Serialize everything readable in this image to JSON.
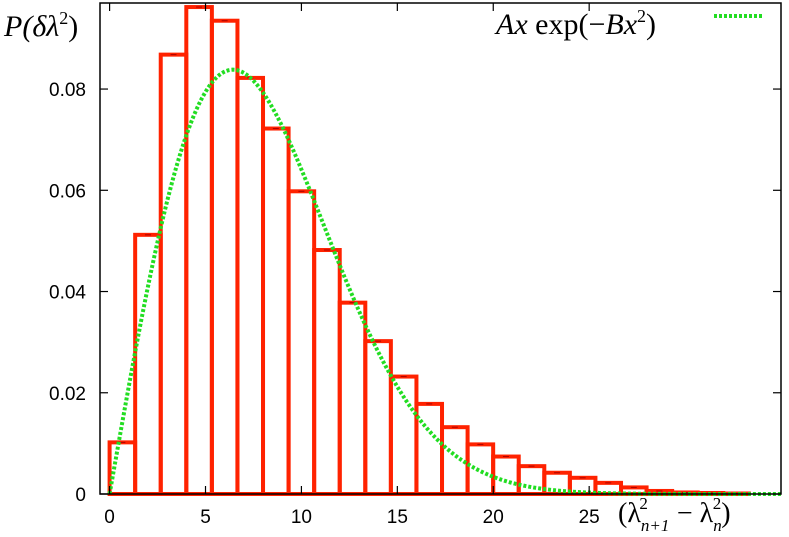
{
  "chart_data": {
    "type": "bar",
    "title": "",
    "ylabel_parts": {
      "main": "P(δλ",
      "sup": "2",
      "close": ")"
    },
    "xlabel_parts": {
      "open": "(λ",
      "sub1": "n+1",
      "sup1": "2",
      "minus": " − λ",
      "sub2": "n",
      "sup2": "2",
      "close": ")"
    },
    "xlim": [
      -0.5,
      35
    ],
    "ylim": [
      0,
      0.097
    ],
    "xticks": [
      0,
      5,
      10,
      15,
      20,
      25
    ],
    "xtick_labels": [
      "0",
      "5",
      "10",
      "15",
      "20",
      "25"
    ],
    "yticks": [
      0,
      0.02,
      0.04,
      0.06,
      0.08
    ],
    "ytick_labels": [
      "0",
      "0.02",
      "0.04",
      "0.06",
      "0.08"
    ],
    "grid": false,
    "legend_position": "top-right",
    "series": [
      {
        "name": "",
        "kind": "histogram",
        "color": "#ff2200",
        "bin_width": 1.333,
        "bin_start": 0,
        "values": [
          0.0102,
          0.0512,
          0.0868,
          0.0962,
          0.0935,
          0.0822,
          0.0722,
          0.0598,
          0.0482,
          0.0378,
          0.0302,
          0.0232,
          0.0178,
          0.0132,
          0.0098,
          0.0074,
          0.0055,
          0.0042,
          0.0032,
          0.0022,
          0.0013,
          0.0006,
          0.0003,
          0.0002,
          0.0001
        ]
      },
      {
        "name": "Ax exp(−Bx²)",
        "legend_parts": {
          "a": "Ax ",
          "exp": "exp(−",
          "b": "Bx",
          "sup": "2",
          "close": ")"
        },
        "kind": "line",
        "style": "dotted",
        "color": "#22dd22",
        "function": "A*x*exp(-B*x^2)",
        "params": {
          "A": 0.0215,
          "B": 0.0121
        },
        "x_range": [
          0,
          35
        ]
      }
    ]
  }
}
